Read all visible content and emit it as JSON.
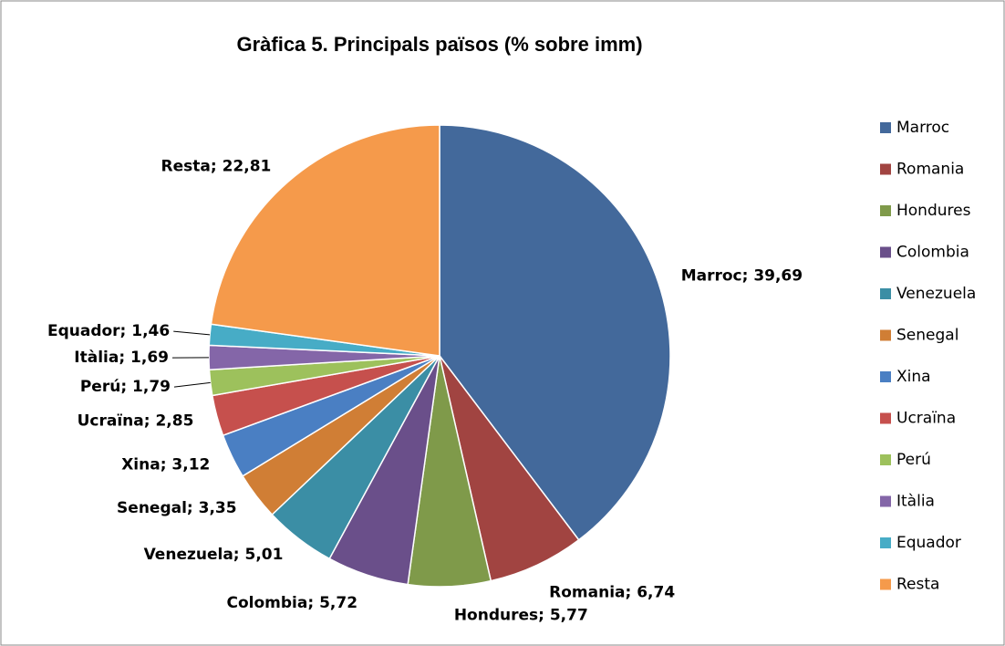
{
  "chart_data": {
    "type": "pie",
    "title": "Gràfica 5. Principals països (% sobre imm)",
    "categories": [
      "Marroc",
      "Romania",
      "Hondures",
      "Colombia",
      "Venezuela",
      "Senegal",
      "Xina",
      "Ucraïna",
      "Perú",
      "Itàlia",
      "Equador",
      "Resta"
    ],
    "values": [
      39.69,
      6.74,
      5.77,
      5.72,
      5.01,
      3.35,
      3.12,
      2.85,
      1.79,
      1.69,
      1.46,
      22.81
    ],
    "value_labels": [
      "Marroc; 39,69",
      "Romania; 6,74",
      "Hondures; 5,77",
      "Colombia; 5,72",
      "Venezuela; 5,01",
      "Senegal; 3,35",
      "Xina; 3,12",
      "Ucraïna; 2,85",
      "Perú; 1,79",
      "Itàlia; 1,69",
      "Equador; 1,46",
      "Resta; 22,81"
    ],
    "colors": [
      "#43699b",
      "#a14441",
      "#7f9a4a",
      "#6a4f8a",
      "#3b8ea5",
      "#d07e35",
      "#4a7fc3",
      "#c6504d",
      "#9dc15c",
      "#8466a8",
      "#47acc6",
      "#f59a4b"
    ],
    "legend": "right"
  }
}
